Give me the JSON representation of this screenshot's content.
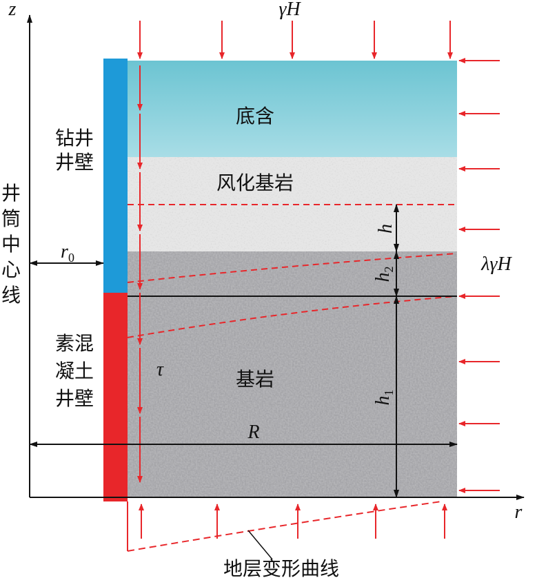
{
  "axes": {
    "z": "z",
    "r": "r"
  },
  "loads": {
    "top": "γH",
    "side": "λγH"
  },
  "layers": [
    "底含",
    "风化基岩",
    "基岩"
  ],
  "walls": {
    "drilled": [
      "钻井",
      "井壁"
    ],
    "concrete": [
      "素混",
      "凝土",
      "井壁"
    ]
  },
  "shaft_centerline": [
    "井",
    "筒",
    "中",
    "心",
    "线"
  ],
  "dimensions": {
    "r0": {
      "base": "r",
      "sub": "0"
    },
    "R": "R",
    "h": "h",
    "h2": {
      "base": "h",
      "sub": "2"
    },
    "h1": {
      "base": "h",
      "sub": "1"
    }
  },
  "shear": "τ",
  "curve_label": "地层变形曲线"
}
